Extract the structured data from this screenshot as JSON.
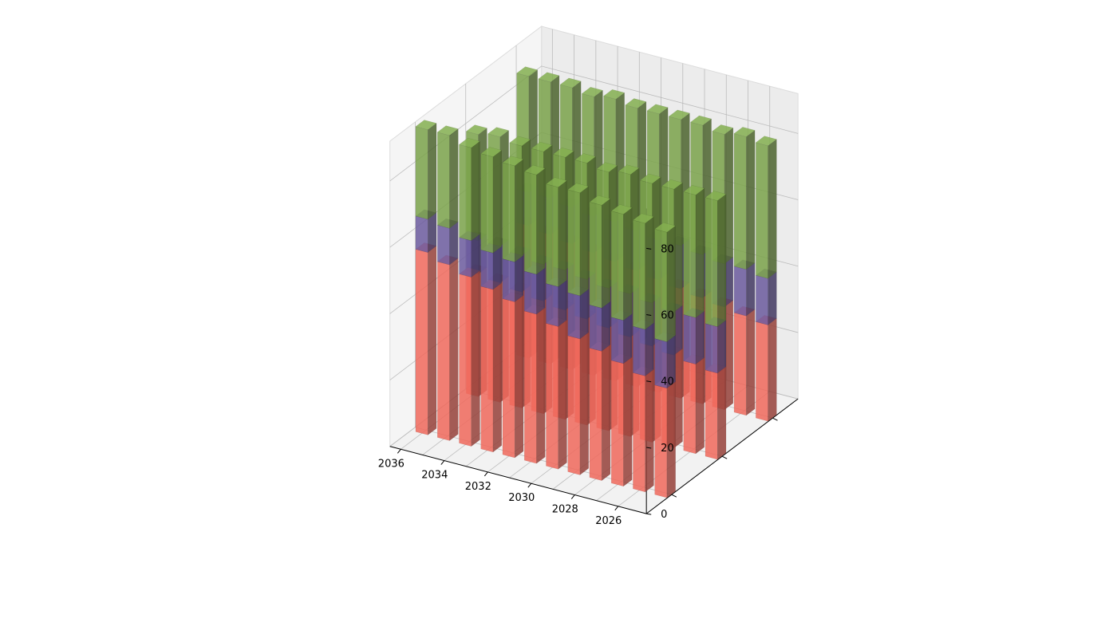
{
  "chart_data": {
    "type": "bar3d-stacked",
    "title": "",
    "xlabel": "",
    "ylabel": "",
    "zlabel": "",
    "x": [
      2025,
      2026,
      2027,
      2028,
      2029,
      2030,
      2031,
      2032,
      2033,
      2034,
      2035,
      2036
    ],
    "x_ticks": [
      2036,
      2034,
      2032,
      2030,
      2028,
      2026
    ],
    "depth_rows": 3,
    "zlim": [
      0,
      92
    ],
    "z_ticks": [
      0,
      20,
      40,
      60,
      80
    ],
    "grid": true,
    "legend": "none",
    "series_colors": [
      "#f0695c",
      "#6b5a9e",
      "#7aa24a"
    ],
    "rows": [
      {
        "segments": [
          [
            33,
            35,
            37,
            39,
            41,
            43,
            45,
            47,
            49,
            51,
            53,
            55
          ],
          [
            14,
            14,
            13,
            13,
            13,
            12,
            12,
            12,
            11,
            11,
            11,
            10
          ],
          [
            33,
            32,
            32,
            31,
            31,
            30,
            30,
            29,
            29,
            28,
            28,
            27
          ]
        ]
      },
      {
        "segments": [
          [
            26,
            27,
            28,
            29,
            30,
            31,
            32,
            33,
            34,
            35,
            36,
            37
          ],
          [
            14,
            14,
            13,
            13,
            13,
            12,
            12,
            12,
            11,
            11,
            11,
            10
          ],
          [
            38,
            37,
            37,
            36,
            36,
            35,
            35,
            34,
            34,
            33,
            33,
            32
          ]
        ]
      },
      {
        "segments": [
          [
            29,
            30,
            31,
            32,
            33,
            34,
            35,
            36,
            37,
            38,
            39,
            40
          ],
          [
            14,
            14,
            13,
            13,
            13,
            12,
            12,
            12,
            11,
            11,
            11,
            10
          ],
          [
            40,
            40,
            39,
            39,
            38,
            38,
            37,
            37,
            36,
            36,
            35,
            35
          ]
        ]
      }
    ]
  }
}
